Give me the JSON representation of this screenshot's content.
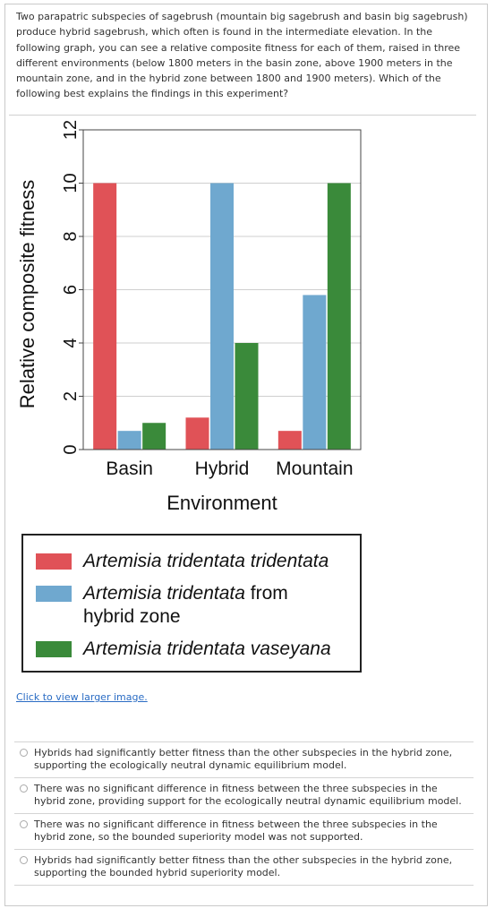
{
  "question": {
    "text": "Two parapatric subspecies of sagebrush (mountain big sagebrush and basin big sagebrush) produce hybrid sagebrush, which often is found in the intermediate elevation. In the following graph, you can see a relative composite fitness for each of them, raised in three different environments (below 1800 meters in the basin zone, above 1900 meters in the mountain zone, and in the hybrid zone between 1800 and 1900 meters). Which of the following best explains the findings in this experiment?"
  },
  "chart_data": {
    "type": "bar",
    "categories": [
      "Basin",
      "Hybrid",
      "Mountain"
    ],
    "series": [
      {
        "values": [
          10,
          1.2,
          0.7
        ],
        "color": "#e05257"
      },
      {
        "values": [
          0.7,
          10,
          5.8
        ],
        "color": "#6fa8cf"
      },
      {
        "values": [
          1.0,
          4.0,
          10
        ],
        "color": "#3a8a3a"
      }
    ],
    "xlabel": "Environment",
    "ylabel": "Relative composite fitness",
    "ylim": [
      0,
      12
    ],
    "yticks": [
      0,
      2,
      4,
      6,
      8,
      10,
      12
    ],
    "grid": "horizontal"
  },
  "legend": {
    "items": [
      {
        "italic": "Artemisia tridentata tridentata",
        "rest": "",
        "color": "#e05257"
      },
      {
        "italic": "Artemisia tridentata",
        "rest": " from hybrid zone",
        "color": "#6fa8cf"
      },
      {
        "italic": "Artemisia tridentata vaseyana",
        "rest": "",
        "color": "#3a8a3a"
      }
    ]
  },
  "link": {
    "label": "Click to view larger image."
  },
  "options": [
    "Hybrids had significantly better fitness than the other subspecies in the hybrid zone, supporting the ecologically neutral dynamic equilibrium model.",
    "There was no significant difference in fitness between the three subspecies in the hybrid zone, providing support for the ecologically neutral dynamic equilibrium model.",
    "There was no significant difference in fitness between the three subspecies in the hybrid zone, so the bounded superiority model was not supported.",
    "Hybrids had significantly better fitness than the other subspecies in the hybrid zone, supporting the bounded hybrid superiority model."
  ]
}
